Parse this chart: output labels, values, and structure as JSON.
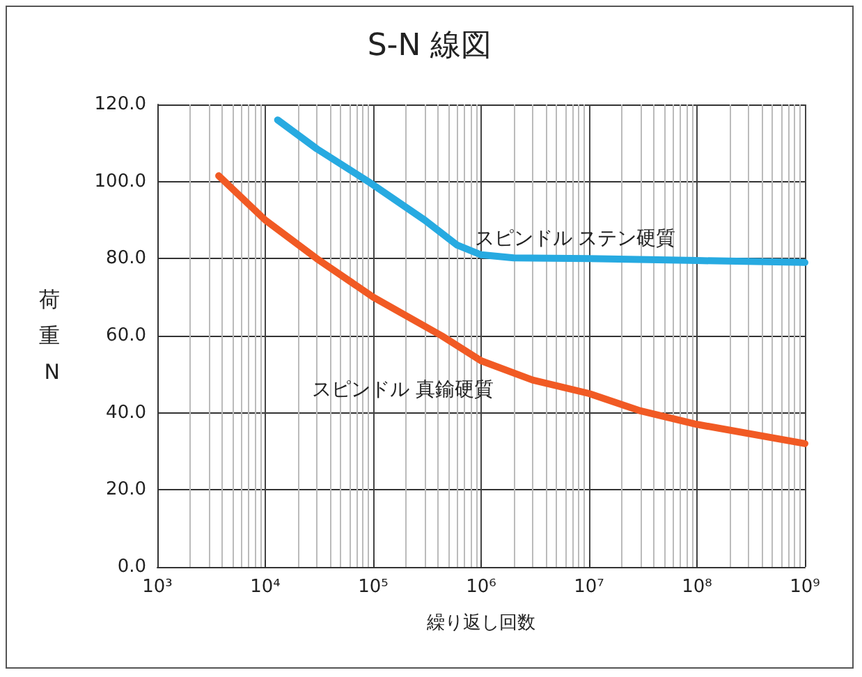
{
  "chart_data": {
    "type": "line",
    "title": "S-N 線図",
    "xlabel": "繰り返し回数",
    "ylabel": "荷重N",
    "log": "x",
    "grid": true,
    "marker": "none",
    "line_style": "solid",
    "xlim": [
      1000,
      1000000000
    ],
    "xticks": [
      {
        "value": 1000,
        "label": "10³"
      },
      {
        "value": 10000,
        "label": "10⁴"
      },
      {
        "value": 100000,
        "label": "10⁵"
      },
      {
        "value": 1000000,
        "label": "10⁶"
      },
      {
        "value": 10000000,
        "label": "10⁷"
      },
      {
        "value": 100000000,
        "label": "10⁸"
      },
      {
        "value": 1000000000,
        "label": "10⁹"
      }
    ],
    "ylim": [
      0,
      120
    ],
    "yticks": [
      {
        "value": 0,
        "label": "0.0"
      },
      {
        "value": 20,
        "label": "20.0"
      },
      {
        "value": 40,
        "label": "40.0"
      },
      {
        "value": 60,
        "label": "60.0"
      },
      {
        "value": 80,
        "label": "80.0"
      },
      {
        "value": 100,
        "label": "100.0"
      },
      {
        "value": 120,
        "label": "120.0"
      }
    ],
    "series": [
      {
        "name": "スピンドル ステン硬質",
        "color": "#27aae1",
        "x": [
          13000,
          30000,
          90000,
          300000,
          600000,
          1000000,
          2000000,
          10000000,
          100000000,
          1000000000
        ],
        "values": [
          116,
          108.5,
          100,
          90,
          83.5,
          81,
          80.2,
          80,
          79.5,
          79
        ]
      },
      {
        "name": "スピンドル 真鍮硬質",
        "color": "#f15a24",
        "x": [
          3700,
          10000,
          30000,
          100000,
          430000,
          1000000,
          3000000,
          10000000,
          30000000,
          100000000,
          1000000000
        ],
        "values": [
          101.5,
          90,
          80,
          70,
          60,
          53.5,
          48.5,
          45,
          40.5,
          37,
          32
        ]
      }
    ]
  }
}
